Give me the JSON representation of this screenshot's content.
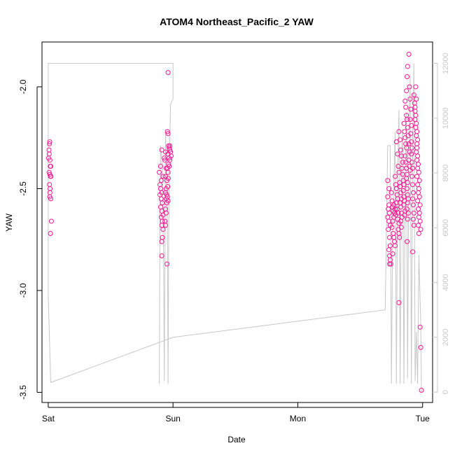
{
  "chart_data": {
    "type": "scatter",
    "title": "ATOM4 Northeast_Pacific_2 YAW",
    "xlabel": "Date",
    "ylabel": "YAW",
    "x_ticks": [
      "Sat",
      "Sun",
      "Mon",
      "Tue"
    ],
    "x_range_days": [
      -0.05,
      3.08
    ],
    "y_ticks": [
      "-2.0",
      "-2.5",
      "-3.0",
      "-3.5"
    ],
    "y_tick_values": [
      -2.0,
      -2.5,
      -3.0,
      -3.5
    ],
    "ylim": [
      -3.55,
      -1.78
    ],
    "y2_ticks": [
      "0",
      "2000",
      "4000",
      "6000",
      "8000",
      "10000",
      "12000"
    ],
    "y2_tick_values": [
      0,
      2000,
      4000,
      6000,
      8000,
      10000,
      12000
    ],
    "y2lim": [
      -380,
      12780
    ],
    "grid": false,
    "colors": {
      "points": "#ff1493",
      "line": "#c8c8c8",
      "text": "#000000",
      "right_axis": "#c8c8c8"
    },
    "series": [
      {
        "style": "points",
        "axis": "left",
        "points": [
          [
            0.003,
            -2.35
          ],
          [
            0.006,
            -2.31
          ],
          [
            0.01,
            -2.28
          ],
          [
            0.012,
            -2.27
          ],
          [
            0.008,
            -2.33
          ],
          [
            0.014,
            -2.36
          ],
          [
            0.016,
            -2.39
          ],
          [
            0.02,
            -2.39
          ],
          [
            0.007,
            -2.42
          ],
          [
            0.012,
            -2.43
          ],
          [
            0.018,
            -2.44
          ],
          [
            0.022,
            -2.44
          ],
          [
            0.01,
            -2.48
          ],
          [
            0.015,
            -2.5
          ],
          [
            0.014,
            -2.52
          ],
          [
            0.012,
            -2.54
          ],
          [
            0.02,
            -2.55
          ],
          [
            0.025,
            -2.66
          ],
          [
            0.018,
            -2.72
          ],
          [
            0.91,
            -2.31
          ],
          [
            0.93,
            -2.35
          ],
          [
            0.9,
            -2.39
          ],
          [
            0.89,
            -2.42
          ],
          [
            0.92,
            -2.44
          ],
          [
            0.905,
            -2.46
          ],
          [
            0.895,
            -2.48
          ],
          [
            0.9,
            -2.5
          ],
          [
            0.91,
            -2.52
          ],
          [
            0.895,
            -2.53
          ],
          [
            0.905,
            -2.55
          ],
          [
            0.915,
            -2.57
          ],
          [
            0.9,
            -2.59
          ],
          [
            0.91,
            -2.61
          ],
          [
            0.92,
            -2.63
          ],
          [
            0.905,
            -2.64
          ],
          [
            0.915,
            -2.66
          ],
          [
            0.91,
            -2.68
          ],
          [
            0.92,
            -2.7
          ],
          [
            0.915,
            -2.74
          ],
          [
            0.91,
            -2.76
          ],
          [
            0.91,
            -2.83
          ],
          [
            0.94,
            -2.32
          ],
          [
            0.935,
            -2.36
          ],
          [
            0.945,
            -2.4
          ],
          [
            0.94,
            -2.44
          ],
          [
            0.95,
            -2.46
          ],
          [
            0.945,
            -2.5
          ],
          [
            0.94,
            -2.52
          ],
          [
            0.95,
            -2.53
          ],
          [
            0.945,
            -2.55
          ],
          [
            0.95,
            -2.57
          ],
          [
            0.94,
            -2.6
          ],
          [
            0.945,
            -2.62
          ],
          [
            0.935,
            -2.66
          ],
          [
            0.94,
            -2.68
          ],
          [
            0.955,
            -2.22
          ],
          [
            0.96,
            -2.23
          ],
          [
            0.965,
            -2.29
          ],
          [
            0.97,
            -2.3
          ],
          [
            0.975,
            -2.31
          ],
          [
            0.96,
            -2.33
          ],
          [
            0.97,
            -2.35
          ],
          [
            0.975,
            -2.36
          ],
          [
            0.965,
            -2.38
          ],
          [
            0.955,
            -2.4
          ],
          [
            0.96,
            -2.42
          ],
          [
            0.975,
            -2.29
          ],
          [
            0.98,
            -2.32
          ],
          [
            0.985,
            -2.34
          ],
          [
            0.97,
            -2.39
          ],
          [
            0.962,
            -2.45
          ],
          [
            0.958,
            -2.49
          ],
          [
            0.955,
            -2.54
          ],
          [
            0.96,
            -2.56
          ],
          [
            0.952,
            -2.87
          ],
          [
            0.96,
            -1.93
          ],
          [
            2.72,
            -2.46
          ],
          [
            2.73,
            -2.5
          ],
          [
            2.72,
            -2.54
          ],
          [
            2.73,
            -2.58
          ],
          [
            2.725,
            -2.6
          ],
          [
            2.735,
            -2.62
          ],
          [
            2.72,
            -2.64
          ],
          [
            2.73,
            -2.66
          ],
          [
            2.74,
            -2.68
          ],
          [
            2.725,
            -2.7
          ],
          [
            2.735,
            -2.74
          ],
          [
            2.74,
            -2.78
          ],
          [
            2.73,
            -2.8
          ],
          [
            2.735,
            -2.83
          ],
          [
            2.74,
            -2.85
          ],
          [
            2.745,
            -2.87
          ],
          [
            2.735,
            -2.87
          ],
          [
            2.75,
            -2.52
          ],
          [
            2.755,
            -2.56
          ],
          [
            2.76,
            -2.59
          ],
          [
            2.765,
            -2.61
          ],
          [
            2.77,
            -2.64
          ],
          [
            2.76,
            -2.66
          ],
          [
            2.755,
            -2.69
          ],
          [
            2.765,
            -2.72
          ],
          [
            2.77,
            -2.74
          ],
          [
            2.775,
            -2.76
          ],
          [
            2.78,
            -2.78
          ],
          [
            2.76,
            -2.82
          ],
          [
            2.77,
            -2.58
          ],
          [
            2.78,
            -2.6
          ],
          [
            2.775,
            -2.62
          ],
          [
            2.785,
            -2.63
          ],
          [
            2.78,
            -2.44
          ],
          [
            2.785,
            -2.48
          ],
          [
            2.79,
            -2.5
          ],
          [
            2.795,
            -2.53
          ],
          [
            2.8,
            -2.55
          ],
          [
            2.79,
            -2.57
          ],
          [
            2.795,
            -2.6
          ],
          [
            2.805,
            -2.62
          ],
          [
            2.8,
            -2.65
          ],
          [
            2.81,
            -2.67
          ],
          [
            2.805,
            -2.7
          ],
          [
            2.81,
            -2.72
          ],
          [
            2.815,
            -2.74
          ],
          [
            2.81,
            -3.06
          ],
          [
            2.79,
            -2.27
          ],
          [
            2.8,
            -2.33
          ],
          [
            2.805,
            -2.39
          ],
          [
            2.81,
            -2.42
          ],
          [
            2.815,
            -2.47
          ],
          [
            2.82,
            -2.49
          ],
          [
            2.825,
            -2.52
          ],
          [
            2.83,
            -2.55
          ],
          [
            2.82,
            -2.57
          ],
          [
            2.825,
            -2.59
          ],
          [
            2.83,
            -2.62
          ],
          [
            2.835,
            -2.64
          ],
          [
            2.825,
            -2.66
          ],
          [
            2.83,
            -2.69
          ],
          [
            2.81,
            -2.22
          ],
          [
            2.82,
            -2.26
          ],
          [
            2.825,
            -2.31
          ],
          [
            2.83,
            -2.34
          ],
          [
            2.84,
            -2.37
          ],
          [
            2.835,
            -2.4
          ],
          [
            2.84,
            -2.43
          ],
          [
            2.845,
            -2.46
          ],
          [
            2.85,
            -2.48
          ],
          [
            2.845,
            -2.51
          ],
          [
            2.85,
            -2.54
          ],
          [
            2.855,
            -2.56
          ],
          [
            2.85,
            -2.58
          ],
          [
            2.86,
            -2.61
          ],
          [
            2.855,
            -2.63
          ],
          [
            2.85,
            -2.18
          ],
          [
            2.855,
            -2.22
          ],
          [
            2.86,
            -2.25
          ],
          [
            2.865,
            -2.28
          ],
          [
            2.87,
            -2.3
          ],
          [
            2.86,
            -2.34
          ],
          [
            2.865,
            -2.37
          ],
          [
            2.87,
            -2.4
          ],
          [
            2.875,
            -2.43
          ],
          [
            2.87,
            -2.45
          ],
          [
            2.88,
            -2.47
          ],
          [
            2.875,
            -2.5
          ],
          [
            2.88,
            -2.53
          ],
          [
            2.885,
            -2.55
          ],
          [
            2.88,
            -2.57
          ],
          [
            2.875,
            -2.6
          ],
          [
            2.885,
            -2.62
          ],
          [
            2.88,
            -2.65
          ],
          [
            2.875,
            -2.76
          ],
          [
            2.86,
            -2.07
          ],
          [
            2.865,
            -2.1
          ],
          [
            2.87,
            -2.14
          ],
          [
            2.875,
            -1.95
          ],
          [
            2.88,
            -1.9
          ],
          [
            2.87,
            -2.02
          ],
          [
            2.875,
            -2.16
          ],
          [
            2.88,
            -2.2
          ],
          [
            2.885,
            -2.24
          ],
          [
            2.89,
            -2.28
          ],
          [
            2.895,
            -2.32
          ],
          [
            2.89,
            -2.36
          ],
          [
            2.895,
            -2.39
          ],
          [
            2.9,
            -2.41
          ],
          [
            2.89,
            -1.84
          ],
          [
            2.895,
            -2.0
          ],
          [
            2.9,
            -2.06
          ],
          [
            2.905,
            -2.11
          ],
          [
            2.9,
            -2.16
          ],
          [
            2.91,
            -2.19
          ],
          [
            2.905,
            -2.23
          ],
          [
            2.91,
            -2.27
          ],
          [
            2.915,
            -2.3
          ],
          [
            2.91,
            -2.33
          ],
          [
            2.915,
            -2.37
          ],
          [
            2.92,
            -2.4
          ],
          [
            2.915,
            -2.44
          ],
          [
            2.92,
            -2.48
          ],
          [
            2.925,
            -2.52
          ],
          [
            2.92,
            -2.55
          ],
          [
            2.925,
            -2.58
          ],
          [
            2.93,
            -2.62
          ],
          [
            2.925,
            -2.65
          ],
          [
            2.93,
            -2.68
          ],
          [
            2.92,
            -2.81
          ],
          [
            2.93,
            -2.04
          ],
          [
            2.935,
            -2.08
          ],
          [
            2.94,
            -2.12
          ],
          [
            2.945,
            -2.0
          ],
          [
            2.95,
            -2.06
          ],
          [
            2.94,
            -2.16
          ],
          [
            2.945,
            -2.2
          ],
          [
            2.95,
            -2.24
          ],
          [
            2.955,
            -2.28
          ],
          [
            2.95,
            -2.32
          ],
          [
            2.955,
            -2.36
          ],
          [
            2.96,
            -2.4
          ],
          [
            2.955,
            -2.44
          ],
          [
            2.96,
            -2.48
          ],
          [
            2.965,
            -2.52
          ],
          [
            2.96,
            -2.56
          ],
          [
            2.965,
            -2.6
          ],
          [
            2.97,
            -2.64
          ],
          [
            2.965,
            -2.68
          ],
          [
            2.97,
            -2.72
          ],
          [
            2.94,
            -2.1
          ],
          [
            2.945,
            -2.14
          ],
          [
            2.95,
            -2.18
          ],
          [
            2.955,
            -2.22
          ],
          [
            2.96,
            -2.26
          ],
          [
            2.955,
            -2.3
          ],
          [
            2.96,
            -2.34
          ],
          [
            2.965,
            -2.38
          ],
          [
            2.97,
            -2.42
          ],
          [
            2.975,
            -2.46
          ],
          [
            2.97,
            -2.5
          ],
          [
            2.975,
            -2.54
          ],
          [
            2.98,
            -2.58
          ],
          [
            2.975,
            -2.62
          ],
          [
            2.98,
            -2.66
          ],
          [
            2.985,
            -2.7
          ],
          [
            2.98,
            -3.18
          ],
          [
            2.985,
            -3.28
          ],
          [
            2.99,
            -3.49
          ]
        ]
      },
      {
        "style": "line",
        "axis": "right",
        "points": [
          [
            0.0,
            12000
          ],
          [
            0.0,
            3500
          ],
          [
            0.02,
            350
          ],
          [
            1.0,
            2000
          ],
          [
            2.7,
            3000
          ],
          [
            2.72,
            9000
          ],
          [
            2.74,
            9000
          ],
          [
            2.75,
            300
          ],
          [
            2.76,
            6000
          ],
          [
            2.78,
            9500
          ],
          [
            2.79,
            300
          ],
          [
            2.8,
            8000
          ],
          [
            2.81,
            10300
          ],
          [
            2.82,
            300
          ],
          [
            2.83,
            8500
          ],
          [
            2.84,
            9600
          ],
          [
            2.85,
            300
          ],
          [
            2.86,
            7600
          ],
          [
            2.87,
            10200
          ],
          [
            2.88,
            500
          ],
          [
            2.89,
            8800
          ],
          [
            2.9,
            11600
          ],
          [
            2.91,
            300
          ],
          [
            2.92,
            9000
          ],
          [
            2.93,
            12000
          ],
          [
            2.94,
            400
          ],
          [
            2.95,
            2200
          ],
          [
            2.96,
            300
          ],
          [
            2.97,
            5000
          ],
          [
            2.985,
            2500
          ],
          [
            2.99,
            0
          ]
        ]
      },
      {
        "style": "line",
        "axis": "right",
        "points": [
          [
            0.0,
            12000
          ],
          [
            1.0,
            12000
          ],
          [
            1.0,
            10700
          ],
          [
            0.98,
            10500
          ],
          [
            0.97,
            8000
          ],
          [
            0.965,
            5200
          ],
          [
            0.96,
            300
          ],
          [
            0.955,
            6000
          ],
          [
            0.95,
            7000
          ],
          [
            0.945,
            8500
          ],
          [
            0.94,
            9500
          ],
          [
            0.93,
            400
          ],
          [
            0.925,
            4500
          ],
          [
            0.92,
            6500
          ],
          [
            0.915,
            8200
          ],
          [
            0.9,
            9000
          ],
          [
            0.895,
            6000
          ],
          [
            0.89,
            300
          ]
        ]
      }
    ]
  }
}
